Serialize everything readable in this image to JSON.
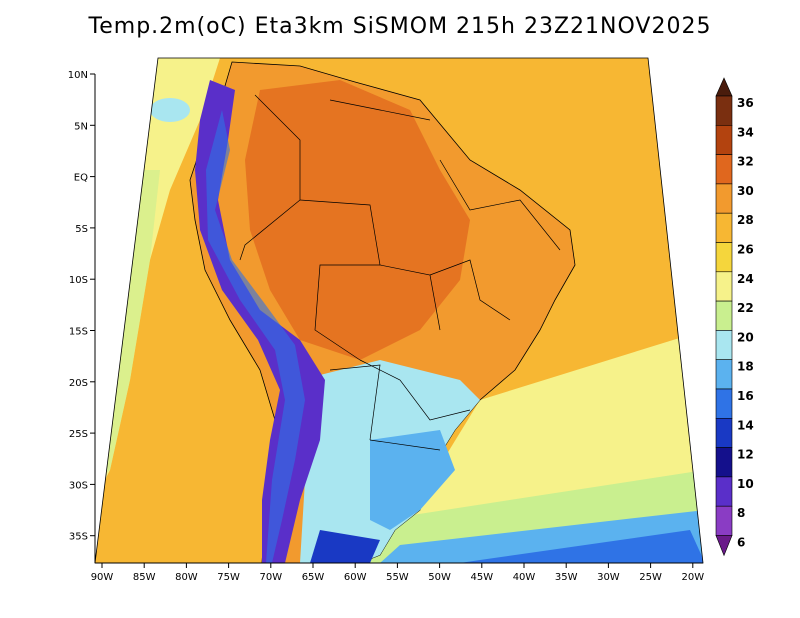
{
  "title": "Temp.2m(oC) Eta3km SiSMOM 215h 23Z21NOV2025",
  "lat_ticks": [
    "10N",
    "5N",
    "EQ",
    "5S",
    "10S",
    "15S",
    "20S",
    "25S",
    "30S",
    "35S"
  ],
  "lon_ticks": [
    "90W",
    "85W",
    "80W",
    "75W",
    "70W",
    "65W",
    "60W",
    "55W",
    "50W",
    "45W",
    "40W",
    "35W",
    "30W",
    "25W",
    "20W"
  ],
  "colorbar": {
    "labels": [
      "36",
      "34",
      "32",
      "30",
      "28",
      "26",
      "24",
      "22",
      "20",
      "18",
      "16",
      "14",
      "12",
      "10",
      "8",
      "6"
    ],
    "colors": [
      "#4a1c0c",
      "#7a2f10",
      "#b3430f",
      "#e0671e",
      "#f29a2e",
      "#f7b733",
      "#f5d63c",
      "#f6f28a",
      "#c9ef8f",
      "#a9e6f0",
      "#5bb2ef",
      "#2f73e6",
      "#1939c4",
      "#14108c",
      "#5a2fc9",
      "#8a3cc4",
      "#6a1a8a"
    ]
  },
  "fill_colors": {
    "ocean_warm": "#f7b733",
    "ocean_mild": "#f6f28a",
    "ocean_cool": "#c9ef8f",
    "land_hot": "#f29a2e",
    "land_very_hot": "#e0671e",
    "andes": "#5a2fc9",
    "south_cool": "#5bb2ef"
  }
}
